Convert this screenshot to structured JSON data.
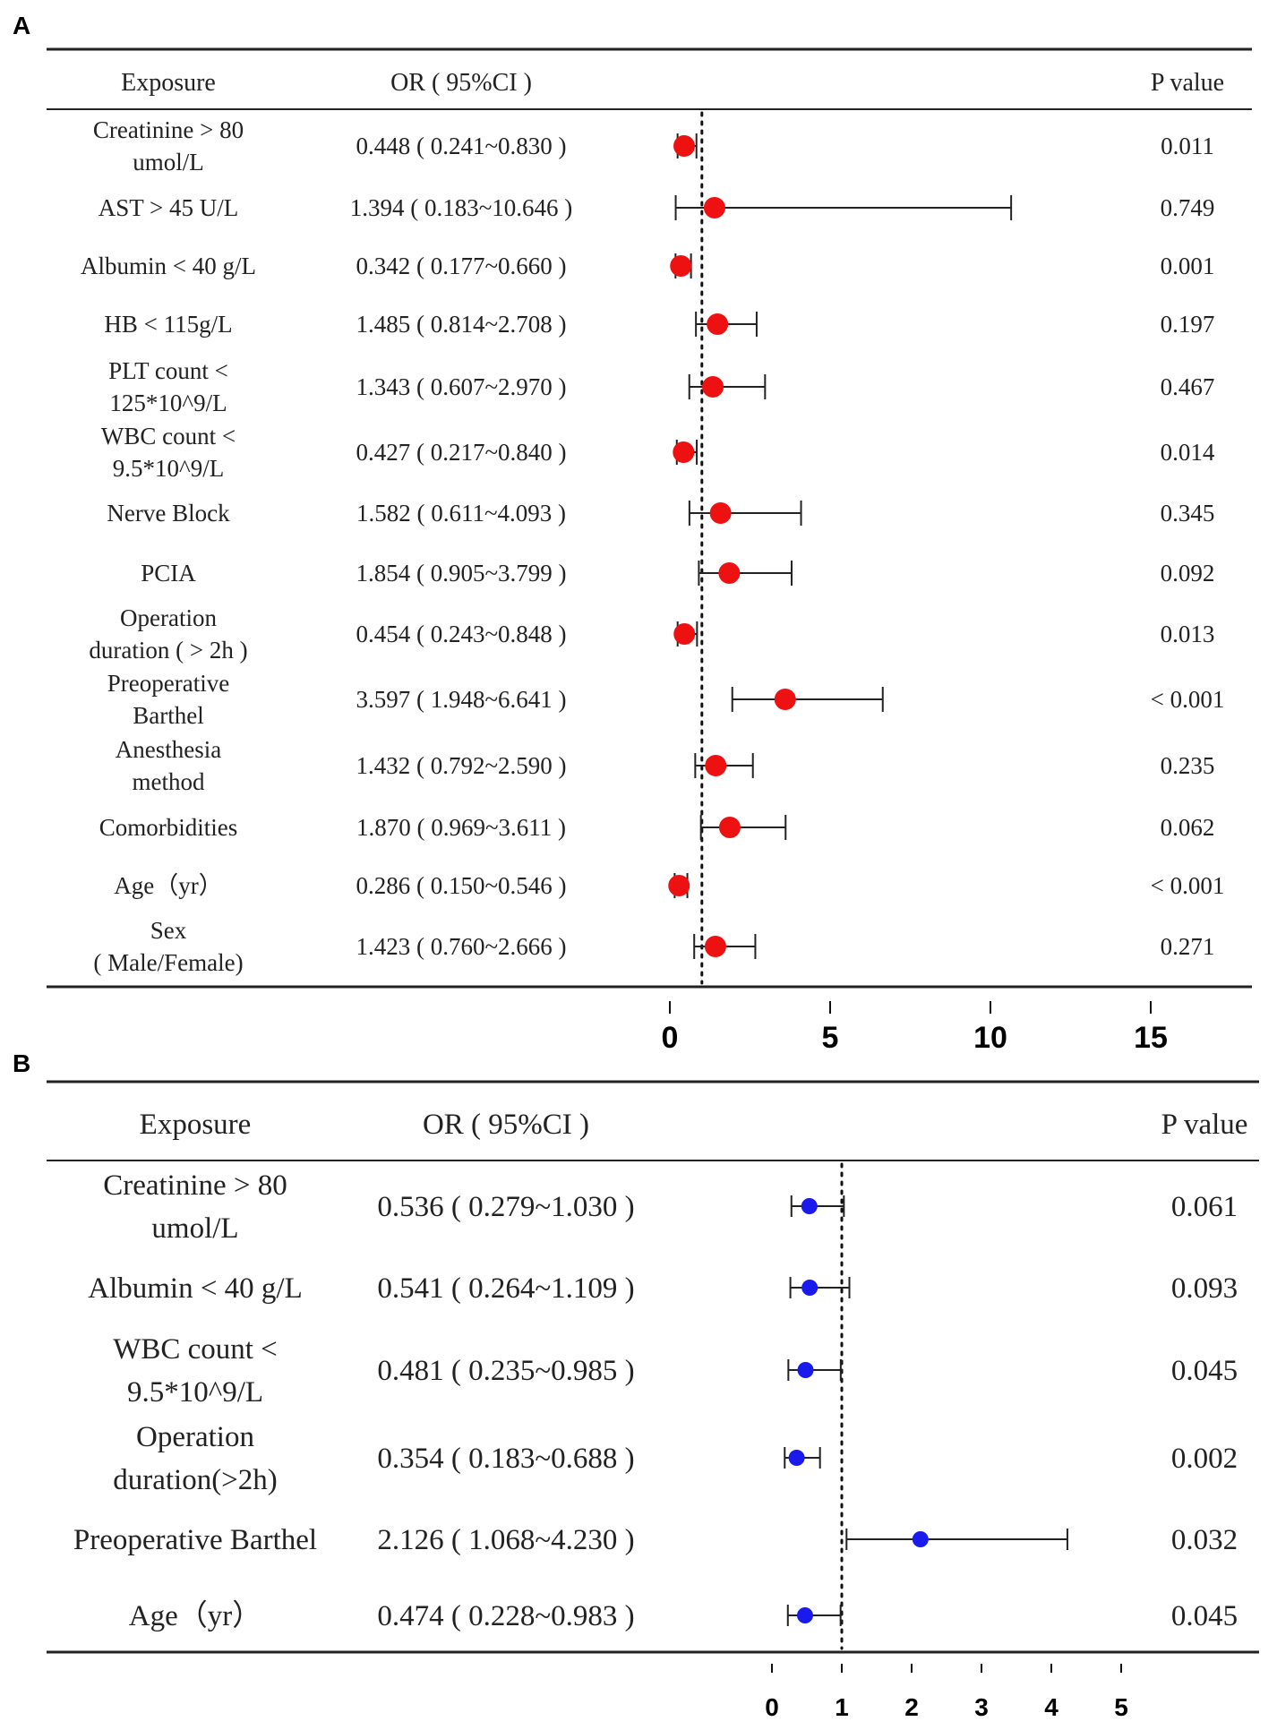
{
  "chart_data": [
    {
      "type": "forest",
      "panel": "A",
      "headers": {
        "exposure": "Exposure",
        "or_ci": "OR ( 95%CI )",
        "p_value": "P value"
      },
      "rows": [
        {
          "exposure": [
            "Creatinine > 80",
            "umol/L"
          ],
          "or_text": "0.448 ( 0.241~0.830 )",
          "p": "0.011",
          "or": 0.448,
          "lo": 0.241,
          "hi": 0.83
        },
        {
          "exposure": [
            "AST > 45 U/L"
          ],
          "or_text": "1.394 ( 0.183~10.646 )",
          "p": "0.749",
          "or": 1.394,
          "lo": 0.183,
          "hi": 10.646
        },
        {
          "exposure": [
            "Albumin < 40 g/L"
          ],
          "or_text": "0.342 ( 0.177~0.660 )",
          "p": "0.001",
          "or": 0.342,
          "lo": 0.177,
          "hi": 0.66
        },
        {
          "exposure": [
            "HB < 115g/L"
          ],
          "or_text": "1.485 ( 0.814~2.708 )",
          "p": "0.197",
          "or": 1.485,
          "lo": 0.814,
          "hi": 2.708
        },
        {
          "exposure": [
            "PLT count <",
            "125*10^9/L"
          ],
          "or_text": "1.343 ( 0.607~2.970 )",
          "p": "0.467",
          "or": 1.343,
          "lo": 0.607,
          "hi": 2.97
        },
        {
          "exposure": [
            "WBC count <",
            "9.5*10^9/L"
          ],
          "or_text": "0.427 ( 0.217~0.840 )",
          "p": "0.014",
          "or": 0.427,
          "lo": 0.217,
          "hi": 0.84
        },
        {
          "exposure": [
            "Nerve Block"
          ],
          "or_text": "1.582 ( 0.611~4.093 )",
          "p": "0.345",
          "or": 1.582,
          "lo": 0.611,
          "hi": 4.093
        },
        {
          "exposure": [
            "PCIA"
          ],
          "or_text": "1.854 ( 0.905~3.799 )",
          "p": "0.092",
          "or": 1.854,
          "lo": 0.905,
          "hi": 3.799
        },
        {
          "exposure": [
            "Operation",
            "duration ( > 2h )"
          ],
          "or_text": "0.454 ( 0.243~0.848 )",
          "p": "0.013",
          "or": 0.454,
          "lo": 0.243,
          "hi": 0.848
        },
        {
          "exposure": [
            "Preoperative",
            "Barthel"
          ],
          "or_text": "3.597 ( 1.948~6.641 )",
          "p": "< 0.001",
          "or": 3.597,
          "lo": 1.948,
          "hi": 6.641
        },
        {
          "exposure": [
            "Anesthesia",
            "method"
          ],
          "or_text": "1.432 ( 0.792~2.590 )",
          "p": "0.235",
          "or": 1.432,
          "lo": 0.792,
          "hi": 2.59
        },
        {
          "exposure": [
            "Comorbidities"
          ],
          "or_text": "1.870 ( 0.969~3.611 )",
          "p": "0.062",
          "or": 1.87,
          "lo": 0.969,
          "hi": 3.611
        },
        {
          "exposure": [
            "Age（yr）"
          ],
          "or_text": "0.286 ( 0.150~0.546 )",
          "p": "< 0.001",
          "or": 0.286,
          "lo": 0.15,
          "hi": 0.546
        },
        {
          "exposure": [
            "Sex",
            "( Male/Female)"
          ],
          "or_text": "1.423 ( 0.760~2.666 )",
          "p": "0.271",
          "or": 1.423,
          "lo": 0.76,
          "hi": 2.666
        }
      ],
      "x_ticks": [
        "0",
        "5",
        "10",
        "15"
      ],
      "x_tick_values": [
        0,
        5,
        10,
        15
      ],
      "reference_line": 1,
      "marker_color": "#ee1111"
    },
    {
      "type": "forest",
      "panel": "B",
      "headers": {
        "exposure": "Exposure",
        "or_ci": "OR ( 95%CI )",
        "p_value": "P value"
      },
      "rows": [
        {
          "exposure": [
            "Creatinine > 80",
            "umol/L"
          ],
          "or_text": "0.536 ( 0.279~1.030 )",
          "p": "0.061",
          "or": 0.536,
          "lo": 0.279,
          "hi": 1.03
        },
        {
          "exposure": [
            "Albumin < 40 g/L"
          ],
          "or_text": "0.541 ( 0.264~1.109 )",
          "p": "0.093",
          "or": 0.541,
          "lo": 0.264,
          "hi": 1.109
        },
        {
          "exposure": [
            "WBC count <",
            "9.5*10^9/L"
          ],
          "or_text": "0.481 ( 0.235~0.985 )",
          "p": "0.045",
          "or": 0.481,
          "lo": 0.235,
          "hi": 0.985
        },
        {
          "exposure": [
            "Operation",
            "duration(>2h)"
          ],
          "or_text": "0.354 ( 0.183~0.688 )",
          "p": "0.002",
          "or": 0.354,
          "lo": 0.183,
          "hi": 0.688
        },
        {
          "exposure": [
            "Preoperative Barthel"
          ],
          "or_text": "2.126 ( 1.068~4.230 )",
          "p": "0.032",
          "or": 2.126,
          "lo": 1.068,
          "hi": 4.23
        },
        {
          "exposure": [
            "Age（yr）"
          ],
          "or_text": "0.474 ( 0.228~0.983 )",
          "p": "0.045",
          "or": 0.474,
          "lo": 0.228,
          "hi": 0.983
        }
      ],
      "x_ticks": [
        "0",
        "1",
        "2",
        "3",
        "4",
        "5"
      ],
      "x_tick_values": [
        0,
        1,
        2,
        3,
        4,
        5
      ],
      "reference_line": 1,
      "marker_color": "#1a1aee"
    }
  ],
  "panel_labels": {
    "a": "A",
    "b": "B"
  }
}
